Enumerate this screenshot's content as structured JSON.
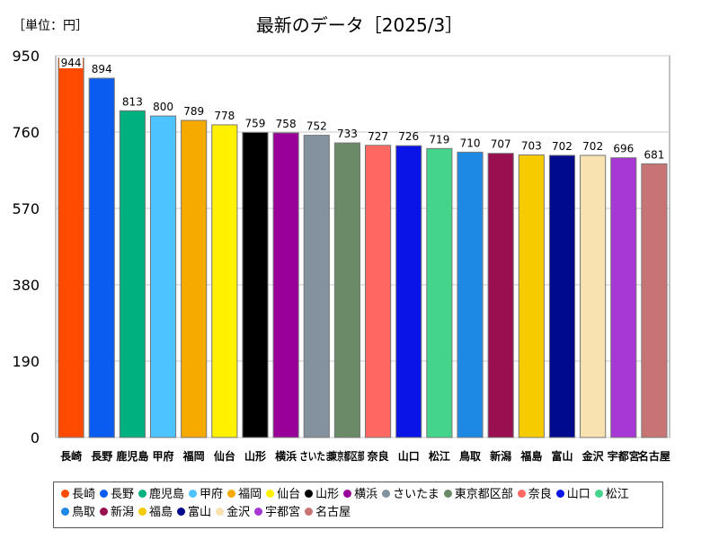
{
  "header": {
    "unit_label": "［単位：円］",
    "title": "最新のデータ［2025/3］"
  },
  "chart_data": {
    "type": "bar",
    "title": "最新のデータ［2025/3］",
    "unit": "円",
    "xlabel": "",
    "ylabel": "",
    "ylim": [
      0,
      950
    ],
    "yticks": [
      0,
      190,
      380,
      570,
      760,
      950
    ],
    "grid": true,
    "legend_position": "bottom",
    "categories": [
      "長崎",
      "長野",
      "鹿児島",
      "甲府",
      "福岡",
      "仙台",
      "山形",
      "横浜",
      "さいたま",
      "東京都区部",
      "奈良",
      "山口",
      "松江",
      "鳥取",
      "新潟",
      "福島",
      "富山",
      "金沢",
      "宇都宮",
      "名古屋"
    ],
    "values": [
      944,
      894,
      813,
      800,
      789,
      778,
      759,
      758,
      752,
      733,
      727,
      726,
      719,
      710,
      707,
      703,
      702,
      702,
      696,
      681
    ],
    "colors": [
      "#ff4b00",
      "#0a5cf0",
      "#00b07f",
      "#4dc4ff",
      "#f6aa00",
      "#fff100",
      "#000000",
      "#990099",
      "#84919e",
      "#6a8a68",
      "#ff6961",
      "#0a14e6",
      "#44d48c",
      "#1e88e5",
      "#990f50",
      "#f6cc00",
      "#000a8c",
      "#f8e3b0",
      "#a838d6",
      "#c97474"
    ]
  }
}
